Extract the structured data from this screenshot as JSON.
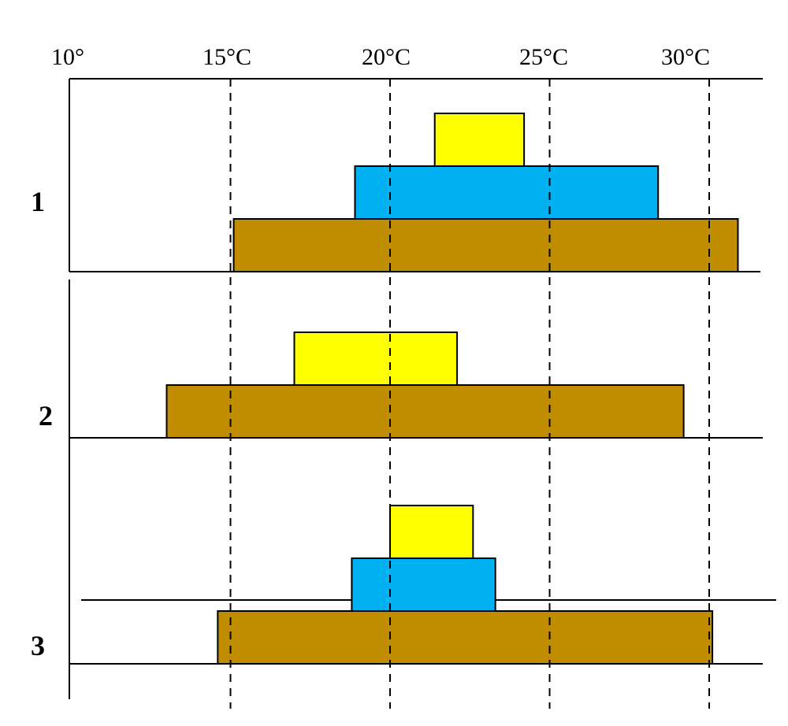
{
  "colors": {
    "brown": "#C08C00",
    "blue": "#00B0F0",
    "yellow": "#FFFF00",
    "line": "#000000"
  },
  "axis": {
    "tick_labels": [
      "10°",
      "15°C",
      "20°C",
      "25°C",
      "30°C"
    ],
    "tick_values": [
      10,
      15,
      20,
      25,
      30
    ],
    "dashed_gridlines_at": [
      15,
      20,
      25,
      30
    ]
  },
  "rows": [
    {
      "label": "1",
      "bars": [
        {
          "color": "brown",
          "from": 15.1,
          "to": 30.9
        },
        {
          "color": "blue",
          "from": 18.9,
          "to": 28.4
        },
        {
          "color": "yellow",
          "from": 21.4,
          "to": 24.2
        }
      ]
    },
    {
      "label": "2",
      "bars": [
        {
          "color": "brown",
          "from": 13.0,
          "to": 29.2
        },
        {
          "color": "yellow",
          "from": 17.0,
          "to": 22.1
        }
      ]
    },
    {
      "label": "3",
      "bars": [
        {
          "color": "brown",
          "from": 14.6,
          "to": 30.1
        },
        {
          "color": "blue",
          "from": 18.8,
          "to": 23.3
        },
        {
          "color": "yellow",
          "from": 20.0,
          "to": 22.6
        }
      ]
    }
  ]
}
